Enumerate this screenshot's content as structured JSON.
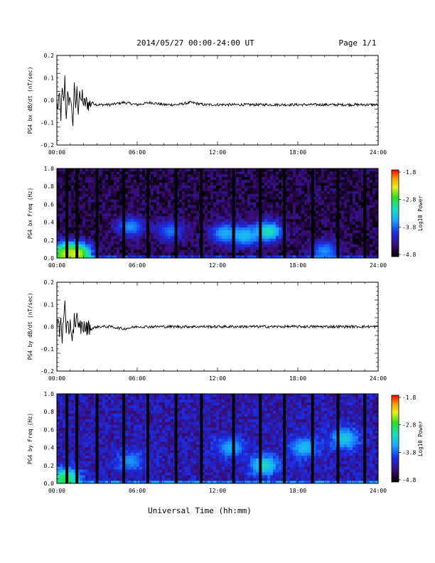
{
  "header": {
    "title": "2014/05/27  00:00-24:00 UT",
    "page": "Page 1/1"
  },
  "footer": {
    "xlabel": "Universal Time (hh:mm)"
  },
  "colorbar": {
    "label": "Log10 Power",
    "ticks": [
      "-1.8",
      "-2.8",
      "-3.8",
      "-4.8"
    ]
  },
  "chart_data": [
    {
      "type": "line",
      "ylabel": "PG4 bx dB/dt (nT/sec)",
      "xlabel": "",
      "x_tick_labels": [
        "00:00",
        "06:00",
        "12:00",
        "18:00",
        "24:00"
      ],
      "y_tick_labels": [
        "0.2",
        "0.1",
        "0.0",
        "-0.1",
        "-0.2"
      ],
      "xlim_hours": [
        0,
        24
      ],
      "ylim": [
        -0.2,
        0.2
      ],
      "series": [
        {
          "x": [
            0.0,
            0.1,
            0.2,
            0.3,
            0.4,
            0.5,
            0.6,
            0.7,
            0.8,
            0.9,
            1.0,
            1.1,
            1.2,
            1.3,
            1.4,
            1.5,
            1.6,
            1.7,
            1.8,
            1.9,
            2.0,
            2.2,
            2.4,
            2.6,
            3,
            4,
            5,
            6,
            7,
            8,
            9,
            10,
            11,
            12,
            13,
            14,
            15,
            16,
            17,
            18,
            19,
            20,
            21,
            22,
            23,
            24
          ],
          "y": [
            -0.01,
            -0.04,
            0.02,
            -0.07,
            0.04,
            -0.02,
            0.09,
            -0.09,
            0.06,
            -0.05,
            0.03,
            -0.04,
            -0.1,
            0.05,
            -0.03,
            0.04,
            -0.04,
            0.05,
            -0.03,
            0.03,
            -0.02,
            -0.01,
            -0.02,
            -0.01,
            -0.02,
            -0.02,
            -0.01,
            -0.02,
            -0.01,
            -0.02,
            -0.02,
            -0.01,
            -0.02,
            -0.02,
            -0.02,
            -0.02,
            -0.02,
            -0.02,
            -0.02,
            -0.02,
            -0.02,
            -0.02,
            -0.02,
            -0.02,
            -0.02,
            -0.02
          ]
        }
      ]
    },
    {
      "type": "heatmap",
      "ylabel": "PG4 bx Freq (Hz)",
      "xlabel": "",
      "x_tick_labels": [
        "00:00",
        "06:00",
        "12:00",
        "18:00",
        "24:00"
      ],
      "y_tick_labels": [
        "1.0",
        "0.8",
        "0.6",
        "0.4",
        "0.2",
        "0.0"
      ],
      "xlim_hours": [
        0,
        24
      ],
      "ylim": [
        0,
        1.0
      ],
      "zlim": [
        -4.8,
        -1.8
      ],
      "data_gaps_hours": [
        0.75,
        1.5,
        3.0,
        5.0,
        6.8,
        8.9,
        10.8,
        13.2,
        15.2,
        17.0,
        19.1,
        21.0,
        23.0
      ],
      "features": [
        {
          "t_hours": 0.6,
          "f_hz": 0.05,
          "log_power": -2.6
        },
        {
          "t_hours": 1.5,
          "f_hz": 0.05,
          "log_power": -2.4
        },
        {
          "t_hours": 5.5,
          "f_hz": 0.35,
          "log_power": -3.6
        },
        {
          "t_hours": 8.5,
          "f_hz": 0.3,
          "log_power": -3.7
        },
        {
          "t_hours": 12.5,
          "f_hz": 0.28,
          "log_power": -3.5
        },
        {
          "t_hours": 14.0,
          "f_hz": 0.25,
          "log_power": -3.4
        },
        {
          "t_hours": 15.8,
          "f_hz": 0.3,
          "log_power": -3.1
        },
        {
          "t_hours": 20.0,
          "f_hz": 0.08,
          "log_power": -3.6
        }
      ]
    },
    {
      "type": "line",
      "ylabel": "PG4 by dB/dt (nT/sec)",
      "xlabel": "",
      "x_tick_labels": [
        "00:00",
        "06:00",
        "12:00",
        "18:00",
        "24:00"
      ],
      "y_tick_labels": [
        "0.2",
        "0.1",
        "0.0",
        "-0.1",
        "-0.2"
      ],
      "xlim_hours": [
        0,
        24
      ],
      "ylim": [
        -0.2,
        0.2
      ],
      "series": [
        {
          "x": [
            0.0,
            0.1,
            0.2,
            0.3,
            0.4,
            0.5,
            0.6,
            0.7,
            0.8,
            0.9,
            1.0,
            1.1,
            1.2,
            1.3,
            1.4,
            1.5,
            1.6,
            1.7,
            1.8,
            1.9,
            2.0,
            2.2,
            2.4,
            2.6,
            3,
            4,
            5,
            6,
            7,
            8,
            9,
            10,
            11,
            12,
            13,
            14,
            15,
            16,
            17,
            18,
            19,
            20,
            21,
            22,
            23,
            24
          ],
          "y": [
            0.0,
            0.03,
            -0.03,
            0.05,
            -0.05,
            0.02,
            0.09,
            -0.06,
            0.05,
            -0.03,
            0.04,
            -0.05,
            -0.04,
            0.05,
            -0.02,
            0.04,
            -0.02,
            0.02,
            -0.01,
            0.01,
            0.0,
            -0.01,
            0.0,
            -0.01,
            0.0,
            0.0,
            -0.01,
            0.0,
            0.0,
            0.0,
            0.0,
            0.0,
            0.0,
            0.0,
            0.0,
            0.0,
            0.0,
            0.0,
            0.0,
            0.0,
            0.0,
            0.0,
            0.0,
            0.0,
            0.0,
            0.0
          ]
        }
      ]
    },
    {
      "type": "heatmap",
      "ylabel": "PG4 by Freq (Hz)",
      "xlabel": "",
      "x_tick_labels": [
        "00:00",
        "06:00",
        "12:00",
        "18:00",
        "24:00"
      ],
      "y_tick_labels": [
        "1.0",
        "0.8",
        "0.6",
        "0.4",
        "0.2",
        "0.0"
      ],
      "xlim_hours": [
        0,
        24
      ],
      "ylim": [
        0,
        1.0
      ],
      "zlim": [
        -4.8,
        -1.8
      ],
      "data_gaps_hours": [
        0.75,
        1.5,
        3.0,
        5.0,
        6.8,
        8.9,
        10.8,
        13.2,
        15.2,
        17.0,
        19.1,
        21.0,
        23.0
      ],
      "features": [
        {
          "t_hours": 0.6,
          "f_hz": 0.05,
          "log_power": -2.8
        },
        {
          "t_hours": 5.5,
          "f_hz": 0.25,
          "log_power": -3.6
        },
        {
          "t_hours": 13.0,
          "f_hz": 0.4,
          "log_power": -3.5
        },
        {
          "t_hours": 15.5,
          "f_hz": 0.2,
          "log_power": -3.2
        },
        {
          "t_hours": 18.5,
          "f_hz": 0.4,
          "log_power": -3.4
        },
        {
          "t_hours": 21.5,
          "f_hz": 0.5,
          "log_power": -3.3
        }
      ]
    }
  ]
}
